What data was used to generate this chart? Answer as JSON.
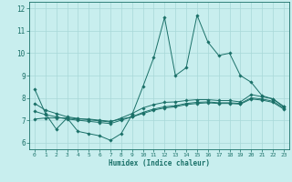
{
  "xlabel": "Humidex (Indice chaleur)",
  "ylabel": "",
  "background_color": "#c8eeee",
  "grid_color": "#a8d8d8",
  "line_color": "#1a7068",
  "xlim": [
    -0.5,
    23.5
  ],
  "ylim": [
    5.7,
    12.3
  ],
  "xticks": [
    0,
    1,
    2,
    3,
    4,
    5,
    6,
    7,
    8,
    9,
    10,
    11,
    12,
    13,
    14,
    15,
    16,
    17,
    18,
    19,
    20,
    21,
    22,
    23
  ],
  "yticks": [
    6,
    7,
    8,
    9,
    10,
    11,
    12
  ],
  "hours": [
    0,
    1,
    2,
    3,
    4,
    5,
    6,
    7,
    8,
    9,
    10,
    11,
    12,
    13,
    14,
    15,
    16,
    17,
    18,
    19,
    20,
    21,
    22,
    23
  ],
  "line1": [
    8.4,
    7.3,
    6.6,
    7.1,
    6.5,
    6.4,
    6.3,
    6.1,
    6.4,
    7.25,
    8.5,
    9.8,
    11.6,
    9.0,
    9.35,
    11.7,
    10.5,
    9.9,
    10.0,
    9.0,
    8.7,
    8.1,
    7.95,
    7.6
  ],
  "line2": [
    7.05,
    7.1,
    7.1,
    7.1,
    7.05,
    7.05,
    7.0,
    6.95,
    7.05,
    7.15,
    7.3,
    7.45,
    7.55,
    7.6,
    7.7,
    7.75,
    7.78,
    7.75,
    7.75,
    7.72,
    7.95,
    7.9,
    7.8,
    7.5
  ],
  "line3": [
    7.4,
    7.25,
    7.15,
    7.05,
    7.0,
    6.95,
    6.9,
    6.85,
    7.0,
    7.15,
    7.35,
    7.5,
    7.6,
    7.65,
    7.75,
    7.8,
    7.82,
    7.78,
    7.78,
    7.75,
    8.0,
    7.95,
    7.85,
    7.55
  ],
  "line4": [
    7.75,
    7.45,
    7.3,
    7.15,
    7.08,
    7.02,
    6.97,
    6.92,
    7.1,
    7.3,
    7.55,
    7.7,
    7.8,
    7.82,
    7.88,
    7.92,
    7.92,
    7.88,
    7.88,
    7.82,
    8.15,
    8.05,
    7.96,
    7.62
  ]
}
